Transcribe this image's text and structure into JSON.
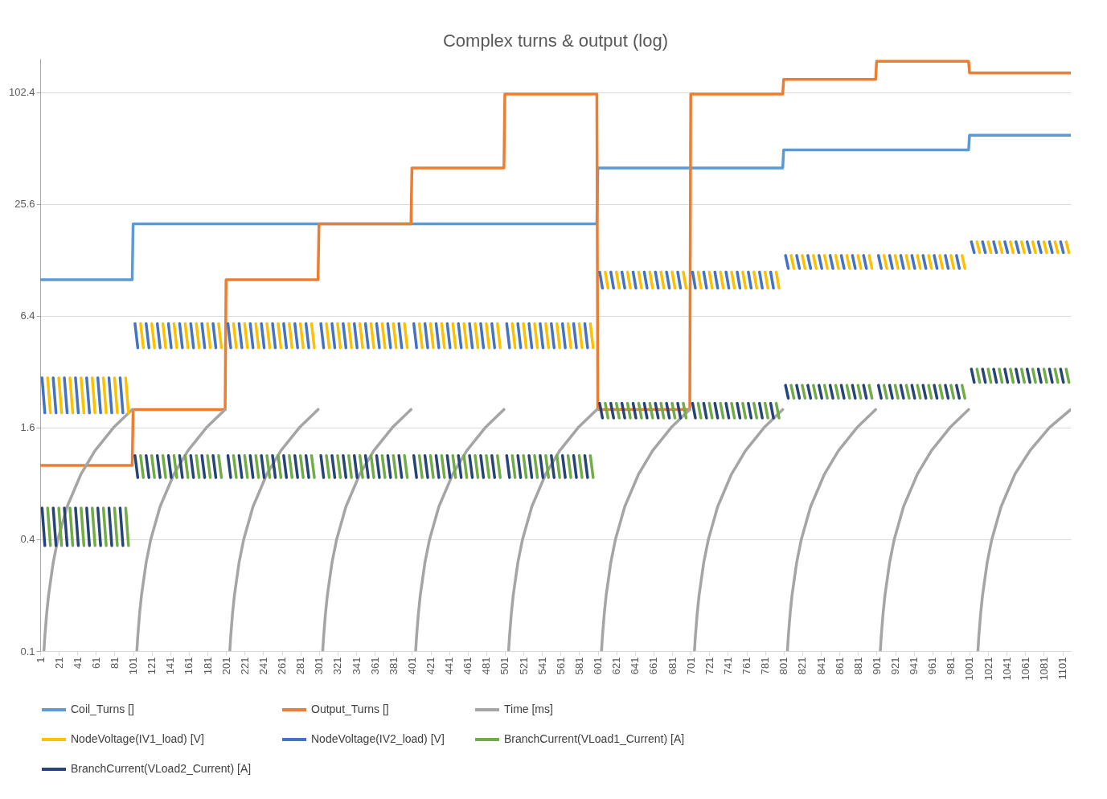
{
  "chart_data": {
    "type": "line",
    "title": "Complex turns & output (log)",
    "log": true,
    "grid": "y",
    "legend": "bottom",
    "marker": "none",
    "line_style": "solid",
    "xlim": [
      1,
      1110
    ],
    "xticks": [
      1,
      21,
      41,
      61,
      81,
      101,
      121,
      141,
      161,
      181,
      201,
      221,
      241,
      261,
      281,
      301,
      321,
      341,
      361,
      381,
      401,
      421,
      441,
      461,
      481,
      501,
      521,
      541,
      561,
      581,
      601,
      621,
      641,
      661,
      681,
      701,
      721,
      741,
      761,
      781,
      801,
      821,
      841,
      861,
      881,
      901,
      921,
      941,
      961,
      981,
      1001,
      1021,
      1041,
      1061,
      1081,
      1101
    ],
    "ylim": [
      0.1,
      155
    ],
    "yticks": [
      0.1,
      0.4,
      1.6,
      6.4,
      25.6,
      102.4
    ],
    "series": [
      {
        "name": "Coil_Turns []",
        "color": "#5b9bd5",
        "x": [
          1,
          100,
          101,
          600,
          601,
          800,
          801,
          1000,
          1001,
          1110
        ],
        "values": [
          10,
          10,
          20,
          20,
          40,
          40,
          50,
          50,
          60,
          60
        ]
      },
      {
        "name": "Output_Turns []",
        "color": "#ed7d31",
        "x": [
          1,
          100,
          101,
          200,
          201,
          300,
          301,
          400,
          401,
          500,
          501,
          600,
          601,
          700,
          701,
          800,
          801,
          900,
          901,
          1000,
          1001,
          1110
        ],
        "values": [
          1,
          1,
          2,
          2,
          10,
          10,
          20,
          20,
          40,
          40,
          100,
          100,
          2,
          2,
          100,
          100,
          120,
          120,
          150,
          150,
          130,
          130
        ]
      },
      {
        "name": "Time [ms]",
        "color": "#a5a5a5",
        "x": [
          5,
          6,
          8,
          10,
          15,
          20,
          30,
          45,
          60,
          80,
          100,
          101,
          105,
          106,
          108,
          110,
          115,
          120,
          130,
          145,
          160,
          180,
          200,
          201,
          205,
          206,
          208,
          210,
          215,
          220,
          230,
          245,
          260,
          280,
          300,
          301,
          305,
          306,
          308,
          310,
          315,
          320,
          330,
          345,
          360,
          380,
          400,
          401,
          405,
          406,
          408,
          410,
          415,
          420,
          430,
          445,
          460,
          480,
          500,
          501,
          505,
          506,
          508,
          510,
          515,
          520,
          530,
          545,
          560,
          580,
          600,
          601,
          605,
          606,
          608,
          610,
          615,
          620,
          630,
          645,
          660,
          680,
          700,
          701,
          705,
          706,
          708,
          710,
          715,
          720,
          730,
          745,
          760,
          780,
          800,
          801,
          805,
          806,
          808,
          810,
          815,
          820,
          830,
          845,
          860,
          880,
          900,
          901,
          905,
          906,
          908,
          910,
          915,
          920,
          930,
          945,
          960,
          980,
          1000,
          1001,
          1010,
          1011,
          1013,
          1015,
          1020,
          1025,
          1035,
          1050,
          1066,
          1087,
          1110
        ],
        "values": [
          0.1,
          0.12,
          0.16,
          0.2,
          0.3,
          0.4,
          0.6,
          0.9,
          1.2,
          1.6,
          2.0,
          null,
          0.1,
          0.12,
          0.16,
          0.2,
          0.3,
          0.4,
          0.6,
          0.9,
          1.2,
          1.6,
          2.0,
          null,
          0.1,
          0.12,
          0.16,
          0.2,
          0.3,
          0.4,
          0.6,
          0.9,
          1.2,
          1.6,
          2.0,
          null,
          0.1,
          0.12,
          0.16,
          0.2,
          0.3,
          0.4,
          0.6,
          0.9,
          1.2,
          1.6,
          2.0,
          null,
          0.1,
          0.12,
          0.16,
          0.2,
          0.3,
          0.4,
          0.6,
          0.9,
          1.2,
          1.6,
          2.0,
          null,
          0.1,
          0.12,
          0.16,
          0.2,
          0.3,
          0.4,
          0.6,
          0.9,
          1.2,
          1.6,
          2.0,
          null,
          0.1,
          0.12,
          0.16,
          0.2,
          0.3,
          0.4,
          0.6,
          0.9,
          1.2,
          1.6,
          2.0,
          null,
          0.1,
          0.12,
          0.16,
          0.2,
          0.3,
          0.4,
          0.6,
          0.9,
          1.2,
          1.6,
          2.0,
          null,
          0.1,
          0.12,
          0.16,
          0.2,
          0.3,
          0.4,
          0.6,
          0.9,
          1.2,
          1.6,
          2.0,
          null,
          0.1,
          0.12,
          0.16,
          0.2,
          0.3,
          0.4,
          0.6,
          0.9,
          1.2,
          1.6,
          2.0,
          null,
          0.1,
          0.12,
          0.16,
          0.2,
          0.3,
          0.4,
          0.6,
          0.9,
          1.2,
          1.6,
          2.0
        ]
      },
      {
        "name": "NodeVoltage(IV1_load) [V]",
        "color": "#ffc000",
        "x": [
          9,
          12,
          13,
          21,
          24,
          25,
          33,
          36,
          37,
          45,
          48,
          49,
          57,
          60,
          61,
          69,
          72,
          73,
          81,
          84,
          85,
          93,
          96,
          97,
          109,
          112,
          113,
          121,
          124,
          125,
          133,
          136,
          137,
          145,
          148,
          149,
          157,
          160,
          161,
          169,
          172,
          173,
          181,
          184,
          185,
          193,
          196,
          197,
          209,
          212,
          213,
          221,
          224,
          225,
          233,
          236,
          237,
          245,
          248,
          249,
          257,
          260,
          261,
          269,
          272,
          273,
          281,
          284,
          285,
          293,
          296,
          297,
          309,
          312,
          313,
          321,
          324,
          325,
          333,
          336,
          337,
          345,
          348,
          349,
          357,
          360,
          361,
          369,
          372,
          373,
          381,
          384,
          385,
          393,
          396,
          397,
          409,
          412,
          413,
          421,
          424,
          425,
          433,
          436,
          437,
          445,
          448,
          449,
          457,
          460,
          461,
          469,
          472,
          473,
          481,
          484,
          485,
          493,
          496,
          497,
          509,
          512,
          513,
          521,
          524,
          525,
          533,
          536,
          537,
          545,
          548,
          549,
          557,
          560,
          561,
          569,
          572,
          573,
          581,
          584,
          585,
          593,
          596,
          597,
          609,
          612,
          613,
          621,
          624,
          625,
          633,
          636,
          637,
          645,
          648,
          649,
          657,
          660,
          661,
          669,
          672,
          673,
          681,
          684,
          685,
          693,
          696,
          697,
          709,
          712,
          713,
          721,
          724,
          725,
          733,
          736,
          737,
          745,
          748,
          749,
          757,
          760,
          761,
          769,
          772,
          773,
          781,
          784,
          785,
          793,
          796,
          797,
          809,
          812,
          813,
          821,
          824,
          825,
          833,
          836,
          837,
          845,
          848,
          849,
          857,
          860,
          861,
          869,
          872,
          873,
          881,
          884,
          885,
          893,
          896,
          897,
          909,
          912,
          913,
          921,
          924,
          925,
          933,
          936,
          937,
          945,
          948,
          949,
          957,
          960,
          961,
          969,
          972,
          973,
          981,
          984,
          985,
          993,
          996,
          997,
          1009,
          1012,
          1013,
          1021,
          1024,
          1025,
          1033,
          1036,
          1037,
          1045,
          1048,
          1049,
          1057,
          1060,
          1061,
          1069,
          1072,
          1073,
          1081,
          1084,
          1085,
          1093,
          1096,
          1097,
          1105,
          1108
        ],
        "values": [
          2.96,
          1.92,
          null,
          2.96,
          1.92,
          null,
          2.96,
          1.92,
          null,
          2.96,
          1.92,
          null,
          2.96,
          1.92,
          null,
          2.96,
          1.92,
          null,
          2.96,
          1.92,
          null,
          2.96,
          1.92,
          null,
          5.8,
          4.3,
          null,
          5.8,
          4.3,
          null,
          5.8,
          4.3,
          null,
          5.8,
          4.3,
          null,
          5.8,
          4.3,
          null,
          5.8,
          4.3,
          null,
          5.8,
          4.3,
          null,
          5.8,
          4.3,
          null,
          5.8,
          4.3,
          null,
          5.8,
          4.3,
          null,
          5.8,
          4.3,
          null,
          5.8,
          4.3,
          null,
          5.8,
          4.3,
          null,
          5.8,
          4.3,
          null,
          5.8,
          4.3,
          null,
          5.8,
          4.3,
          null,
          5.8,
          4.3,
          null,
          5.8,
          4.3,
          null,
          5.8,
          4.3,
          null,
          5.8,
          4.3,
          null,
          5.8,
          4.3,
          null,
          5.8,
          4.3,
          null,
          5.8,
          4.3,
          null,
          5.8,
          4.3,
          null,
          5.8,
          4.3,
          null,
          5.8,
          4.3,
          null,
          5.8,
          4.3,
          null,
          5.8,
          4.3,
          null,
          5.8,
          4.3,
          null,
          5.8,
          4.3,
          null,
          5.8,
          4.3,
          null,
          5.8,
          4.3,
          null,
          5.8,
          4.3,
          null,
          5.8,
          4.3,
          null,
          5.8,
          4.3,
          null,
          5.8,
          4.3,
          null,
          5.8,
          4.3,
          null,
          5.8,
          4.3,
          null,
          5.8,
          4.3,
          null,
          5.8,
          4.3,
          null,
          11,
          9,
          null,
          11,
          9,
          null,
          11,
          9,
          null,
          11,
          9,
          null,
          11,
          9,
          null,
          11,
          9,
          null,
          11,
          9,
          null,
          11,
          9,
          null,
          11,
          9,
          null,
          11,
          9,
          null,
          11,
          9,
          null,
          11,
          9,
          null,
          11,
          9,
          null,
          11,
          9,
          null,
          11,
          9,
          null,
          11,
          9,
          null,
          13.5,
          11.5,
          null,
          13.5,
          11.5,
          null,
          13.5,
          11.5,
          null,
          13.5,
          11.5,
          null,
          13.5,
          11.5,
          null,
          13.5,
          11.5,
          null,
          13.5,
          11.5,
          null,
          13.5,
          11.5,
          null,
          13.5,
          11.5,
          null,
          13.5,
          11.5,
          null,
          13.5,
          11.5,
          null,
          13.5,
          11.5,
          null,
          13.5,
          11.5,
          null,
          13.5,
          11.5,
          null,
          13.5,
          11.5,
          null,
          13.5,
          11.5,
          null,
          16,
          14,
          null,
          16,
          14,
          null,
          16,
          14,
          null,
          16,
          14,
          null,
          16,
          14,
          null,
          16,
          14,
          null,
          16,
          14,
          null,
          16,
          14,
          null,
          16,
          14
        ]
      },
      {
        "name": "NodeVoltage(IV2_load) [V]",
        "color": "#4472c4",
        "x": [
          3,
          6,
          7,
          15,
          18,
          19,
          27,
          30,
          31,
          39,
          42,
          43,
          51,
          54,
          55,
          63,
          66,
          67,
          75,
          78,
          79,
          87,
          90,
          91,
          103,
          106,
          107,
          115,
          118,
          119,
          127,
          130,
          131,
          139,
          142,
          143,
          151,
          154,
          155,
          163,
          166,
          167,
          175,
          178,
          179,
          187,
          190,
          191,
          203,
          206,
          207,
          215,
          218,
          219,
          227,
          230,
          231,
          239,
          242,
          243,
          251,
          254,
          255,
          263,
          266,
          267,
          275,
          278,
          279,
          287,
          290,
          291,
          303,
          306,
          307,
          315,
          318,
          319,
          327,
          330,
          331,
          339,
          342,
          343,
          351,
          354,
          355,
          363,
          366,
          367,
          375,
          378,
          379,
          387,
          390,
          391,
          403,
          406,
          407,
          415,
          418,
          419,
          427,
          430,
          431,
          439,
          442,
          443,
          451,
          454,
          455,
          463,
          466,
          467,
          475,
          478,
          479,
          487,
          490,
          491,
          503,
          506,
          507,
          515,
          518,
          519,
          527,
          530,
          531,
          539,
          542,
          543,
          551,
          554,
          555,
          563,
          566,
          567,
          575,
          578,
          579,
          587,
          590,
          591,
          603,
          606,
          607,
          615,
          618,
          619,
          627,
          630,
          631,
          639,
          642,
          643,
          651,
          654,
          655,
          663,
          666,
          667,
          675,
          678,
          679,
          687,
          690,
          691,
          703,
          706,
          707,
          715,
          718,
          719,
          727,
          730,
          731,
          739,
          742,
          743,
          751,
          754,
          755,
          763,
          766,
          767,
          775,
          778,
          779,
          787,
          790,
          791,
          803,
          806,
          807,
          815,
          818,
          819,
          827,
          830,
          831,
          839,
          842,
          843,
          851,
          854,
          855,
          863,
          866,
          867,
          875,
          878,
          879,
          887,
          890,
          891,
          903,
          906,
          907,
          915,
          918,
          919,
          927,
          930,
          931,
          939,
          942,
          943,
          951,
          954,
          955,
          963,
          966,
          967,
          975,
          978,
          979,
          987,
          990,
          991,
          1003,
          1006,
          1007,
          1015,
          1018,
          1019,
          1027,
          1030,
          1031,
          1039,
          1042,
          1043,
          1051,
          1054,
          1055,
          1063,
          1066,
          1067,
          1075,
          1078,
          1079,
          1087,
          1090,
          1091,
          1099,
          1102
        ],
        "values": [
          2.96,
          1.92,
          null,
          2.96,
          1.92,
          null,
          2.96,
          1.92,
          null,
          2.96,
          1.92,
          null,
          2.96,
          1.92,
          null,
          2.96,
          1.92,
          null,
          2.96,
          1.92,
          null,
          2.96,
          1.92,
          null,
          5.8,
          4.3,
          null,
          5.8,
          4.3,
          null,
          5.8,
          4.3,
          null,
          5.8,
          4.3,
          null,
          5.8,
          4.3,
          null,
          5.8,
          4.3,
          null,
          5.8,
          4.3,
          null,
          5.8,
          4.3,
          null,
          5.8,
          4.3,
          null,
          5.8,
          4.3,
          null,
          5.8,
          4.3,
          null,
          5.8,
          4.3,
          null,
          5.8,
          4.3,
          null,
          5.8,
          4.3,
          null,
          5.8,
          4.3,
          null,
          5.8,
          4.3,
          null,
          5.8,
          4.3,
          null,
          5.8,
          4.3,
          null,
          5.8,
          4.3,
          null,
          5.8,
          4.3,
          null,
          5.8,
          4.3,
          null,
          5.8,
          4.3,
          null,
          5.8,
          4.3,
          null,
          5.8,
          4.3,
          null,
          5.8,
          4.3,
          null,
          5.8,
          4.3,
          null,
          5.8,
          4.3,
          null,
          5.8,
          4.3,
          null,
          5.8,
          4.3,
          null,
          5.8,
          4.3,
          null,
          5.8,
          4.3,
          null,
          5.8,
          4.3,
          null,
          5.8,
          4.3,
          null,
          5.8,
          4.3,
          null,
          5.8,
          4.3,
          null,
          5.8,
          4.3,
          null,
          5.8,
          4.3,
          null,
          5.8,
          4.3,
          null,
          5.8,
          4.3,
          null,
          5.8,
          4.3,
          null,
          11,
          9,
          null,
          11,
          9,
          null,
          11,
          9,
          null,
          11,
          9,
          null,
          11,
          9,
          null,
          11,
          9,
          null,
          11,
          9,
          null,
          11,
          9,
          null,
          11,
          9,
          null,
          11,
          9,
          null,
          11,
          9,
          null,
          11,
          9,
          null,
          11,
          9,
          null,
          11,
          9,
          null,
          11,
          9,
          null,
          11,
          9,
          null,
          13.5,
          11.5,
          null,
          13.5,
          11.5,
          null,
          13.5,
          11.5,
          null,
          13.5,
          11.5,
          null,
          13.5,
          11.5,
          null,
          13.5,
          11.5,
          null,
          13.5,
          11.5,
          null,
          13.5,
          11.5,
          null,
          13.5,
          11.5,
          null,
          13.5,
          11.5,
          null,
          13.5,
          11.5,
          null,
          13.5,
          11.5,
          null,
          13.5,
          11.5,
          null,
          13.5,
          11.5,
          null,
          13.5,
          11.5,
          null,
          13.5,
          11.5,
          null,
          16,
          14,
          null,
          16,
          14,
          null,
          16,
          14,
          null,
          16,
          14,
          null,
          16,
          14,
          null,
          16,
          14,
          null,
          16,
          14,
          null,
          16,
          14,
          null,
          16,
          14
        ]
      },
      {
        "name": "BranchCurrent(VLoad1_Current) [A]",
        "color": "#70ad47",
        "x": [
          9,
          12,
          13,
          21,
          24,
          25,
          33,
          36,
          37,
          45,
          48,
          49,
          57,
          60,
          61,
          69,
          72,
          73,
          81,
          84,
          85,
          93,
          96,
          97,
          109,
          112,
          113,
          121,
          124,
          125,
          133,
          136,
          137,
          145,
          148,
          149,
          157,
          160,
          161,
          169,
          172,
          173,
          181,
          184,
          185,
          193,
          196,
          197,
          209,
          212,
          213,
          221,
          224,
          225,
          233,
          236,
          237,
          245,
          248,
          249,
          257,
          260,
          261,
          269,
          272,
          273,
          281,
          284,
          285,
          293,
          296,
          297,
          309,
          312,
          313,
          321,
          324,
          325,
          333,
          336,
          337,
          345,
          348,
          349,
          357,
          360,
          361,
          369,
          372,
          373,
          381,
          384,
          385,
          393,
          396,
          397,
          409,
          412,
          413,
          421,
          424,
          425,
          433,
          436,
          437,
          445,
          448,
          449,
          457,
          460,
          461,
          469,
          472,
          473,
          481,
          484,
          485,
          493,
          496,
          497,
          509,
          512,
          513,
          521,
          524,
          525,
          533,
          536,
          537,
          545,
          548,
          549,
          557,
          560,
          561,
          569,
          572,
          573,
          581,
          584,
          585,
          593,
          596,
          597,
          609,
          612,
          613,
          621,
          624,
          625,
          633,
          636,
          637,
          645,
          648,
          649,
          657,
          660,
          661,
          669,
          672,
          673,
          681,
          684,
          685,
          693,
          696,
          697,
          709,
          712,
          713,
          721,
          724,
          725,
          733,
          736,
          737,
          745,
          748,
          749,
          757,
          760,
          761,
          769,
          772,
          773,
          781,
          784,
          785,
          793,
          796,
          797,
          809,
          812,
          813,
          821,
          824,
          825,
          833,
          836,
          837,
          845,
          848,
          849,
          857,
          860,
          861,
          869,
          872,
          873,
          881,
          884,
          885,
          893,
          896,
          897,
          909,
          912,
          913,
          921,
          924,
          925,
          933,
          936,
          937,
          945,
          948,
          949,
          957,
          960,
          961,
          969,
          972,
          973,
          981,
          984,
          985,
          993,
          996,
          997,
          1009,
          1012,
          1013,
          1021,
          1024,
          1025,
          1033,
          1036,
          1037,
          1045,
          1048,
          1049,
          1057,
          1060,
          1061,
          1069,
          1072,
          1073,
          1081,
          1084,
          1085,
          1093,
          1096,
          1097,
          1105,
          1108
        ],
        "values": [
          0.59,
          0.37,
          null,
          0.59,
          0.37,
          null,
          0.59,
          0.37,
          null,
          0.59,
          0.37,
          null,
          0.59,
          0.37,
          null,
          0.59,
          0.37,
          null,
          0.59,
          0.37,
          null,
          0.59,
          0.37,
          null,
          1.13,
          0.86,
          null,
          1.13,
          0.86,
          null,
          1.13,
          0.86,
          null,
          1.13,
          0.86,
          null,
          1.13,
          0.86,
          null,
          1.13,
          0.86,
          null,
          1.13,
          0.86,
          null,
          1.13,
          0.86,
          null,
          1.13,
          0.86,
          null,
          1.13,
          0.86,
          null,
          1.13,
          0.86,
          null,
          1.13,
          0.86,
          null,
          1.13,
          0.86,
          null,
          1.13,
          0.86,
          null,
          1.13,
          0.86,
          null,
          1.13,
          0.86,
          null,
          1.13,
          0.86,
          null,
          1.13,
          0.86,
          null,
          1.13,
          0.86,
          null,
          1.13,
          0.86,
          null,
          1.13,
          0.86,
          null,
          1.13,
          0.86,
          null,
          1.13,
          0.86,
          null,
          1.13,
          0.86,
          null,
          1.13,
          0.86,
          null,
          1.13,
          0.86,
          null,
          1.13,
          0.86,
          null,
          1.13,
          0.86,
          null,
          1.13,
          0.86,
          null,
          1.13,
          0.86,
          null,
          1.13,
          0.86,
          null,
          1.13,
          0.86,
          null,
          1.13,
          0.86,
          null,
          1.13,
          0.86,
          null,
          1.13,
          0.86,
          null,
          1.13,
          0.86,
          null,
          1.13,
          0.86,
          null,
          1.13,
          0.86,
          null,
          1.13,
          0.86,
          null,
          1.13,
          0.86,
          null,
          2.16,
          1.8,
          null,
          2.16,
          1.8,
          null,
          2.16,
          1.8,
          null,
          2.16,
          1.8,
          null,
          2.16,
          1.8,
          null,
          2.16,
          1.8,
          null,
          2.16,
          1.8,
          null,
          2.16,
          1.8,
          null,
          2.16,
          1.8,
          null,
          2.16,
          1.8,
          null,
          2.16,
          1.8,
          null,
          2.16,
          1.8,
          null,
          2.16,
          1.8,
          null,
          2.16,
          1.8,
          null,
          2.16,
          1.8,
          null,
          2.16,
          1.8,
          null,
          2.7,
          2.3,
          null,
          2.7,
          2.3,
          null,
          2.7,
          2.3,
          null,
          2.7,
          2.3,
          null,
          2.7,
          2.3,
          null,
          2.7,
          2.3,
          null,
          2.7,
          2.3,
          null,
          2.7,
          2.3,
          null,
          2.7,
          2.3,
          null,
          2.7,
          2.3,
          null,
          2.7,
          2.3,
          null,
          2.7,
          2.3,
          null,
          2.7,
          2.3,
          null,
          2.7,
          2.3,
          null,
          2.7,
          2.3,
          null,
          2.7,
          2.3,
          null,
          3.3,
          2.8,
          null,
          3.3,
          2.8,
          null,
          3.3,
          2.8,
          null,
          3.3,
          2.8,
          null,
          3.3,
          2.8,
          null,
          3.3,
          2.8,
          null,
          3.3,
          2.8,
          null,
          3.3,
          2.8,
          null,
          3.3,
          2.8
        ]
      },
      {
        "name": "BranchCurrent(VLoad2_Current) [A]",
        "color": "#264478",
        "x": [
          3,
          6,
          7,
          15,
          18,
          19,
          27,
          30,
          31,
          39,
          42,
          43,
          51,
          54,
          55,
          63,
          66,
          67,
          75,
          78,
          79,
          87,
          90,
          91,
          103,
          106,
          107,
          115,
          118,
          119,
          127,
          130,
          131,
          139,
          142,
          143,
          151,
          154,
          155,
          163,
          166,
          167,
          175,
          178,
          179,
          187,
          190,
          191,
          203,
          206,
          207,
          215,
          218,
          219,
          227,
          230,
          231,
          239,
          242,
          243,
          251,
          254,
          255,
          263,
          266,
          267,
          275,
          278,
          279,
          287,
          290,
          291,
          303,
          306,
          307,
          315,
          318,
          319,
          327,
          330,
          331,
          339,
          342,
          343,
          351,
          354,
          355,
          363,
          366,
          367,
          375,
          378,
          379,
          387,
          390,
          391,
          403,
          406,
          407,
          415,
          418,
          419,
          427,
          430,
          431,
          439,
          442,
          443,
          451,
          454,
          455,
          463,
          466,
          467,
          475,
          478,
          479,
          487,
          490,
          491,
          503,
          506,
          507,
          515,
          518,
          519,
          527,
          530,
          531,
          539,
          542,
          543,
          551,
          554,
          555,
          563,
          566,
          567,
          575,
          578,
          579,
          587,
          590,
          591,
          603,
          606,
          607,
          615,
          618,
          619,
          627,
          630,
          631,
          639,
          642,
          643,
          651,
          654,
          655,
          663,
          666,
          667,
          675,
          678,
          679,
          687,
          690,
          691,
          703,
          706,
          707,
          715,
          718,
          719,
          727,
          730,
          731,
          739,
          742,
          743,
          751,
          754,
          755,
          763,
          766,
          767,
          775,
          778,
          779,
          787,
          790,
          791,
          803,
          806,
          807,
          815,
          818,
          819,
          827,
          830,
          831,
          839,
          842,
          843,
          851,
          854,
          855,
          863,
          866,
          867,
          875,
          878,
          879,
          887,
          890,
          891,
          903,
          906,
          907,
          915,
          918,
          919,
          927,
          930,
          931,
          939,
          942,
          943,
          951,
          954,
          955,
          963,
          966,
          967,
          975,
          978,
          979,
          987,
          990,
          991,
          1003,
          1006,
          1007,
          1015,
          1018,
          1019,
          1027,
          1030,
          1031,
          1039,
          1042,
          1043,
          1051,
          1054,
          1055,
          1063,
          1066,
          1067,
          1075,
          1078,
          1079,
          1087,
          1090,
          1091,
          1099,
          1102
        ],
        "values": [
          0.59,
          0.37,
          null,
          0.59,
          0.37,
          null,
          0.59,
          0.37,
          null,
          0.59,
          0.37,
          null,
          0.59,
          0.37,
          null,
          0.59,
          0.37,
          null,
          0.59,
          0.37,
          null,
          0.59,
          0.37,
          null,
          1.13,
          0.86,
          null,
          1.13,
          0.86,
          null,
          1.13,
          0.86,
          null,
          1.13,
          0.86,
          null,
          1.13,
          0.86,
          null,
          1.13,
          0.86,
          null,
          1.13,
          0.86,
          null,
          1.13,
          0.86,
          null,
          1.13,
          0.86,
          null,
          1.13,
          0.86,
          null,
          1.13,
          0.86,
          null,
          1.13,
          0.86,
          null,
          1.13,
          0.86,
          null,
          1.13,
          0.86,
          null,
          1.13,
          0.86,
          null,
          1.13,
          0.86,
          null,
          1.13,
          0.86,
          null,
          1.13,
          0.86,
          null,
          1.13,
          0.86,
          null,
          1.13,
          0.86,
          null,
          1.13,
          0.86,
          null,
          1.13,
          0.86,
          null,
          1.13,
          0.86,
          null,
          1.13,
          0.86,
          null,
          1.13,
          0.86,
          null,
          1.13,
          0.86,
          null,
          1.13,
          0.86,
          null,
          1.13,
          0.86,
          null,
          1.13,
          0.86,
          null,
          1.13,
          0.86,
          null,
          1.13,
          0.86,
          null,
          1.13,
          0.86,
          null,
          1.13,
          0.86,
          null,
          1.13,
          0.86,
          null,
          1.13,
          0.86,
          null,
          1.13,
          0.86,
          null,
          1.13,
          0.86,
          null,
          1.13,
          0.86,
          null,
          1.13,
          0.86,
          null,
          1.13,
          0.86,
          null,
          2.16,
          1.8,
          null,
          2.16,
          1.8,
          null,
          2.16,
          1.8,
          null,
          2.16,
          1.8,
          null,
          2.16,
          1.8,
          null,
          2.16,
          1.8,
          null,
          2.16,
          1.8,
          null,
          2.16,
          1.8,
          null,
          2.16,
          1.8,
          null,
          2.16,
          1.8,
          null,
          2.16,
          1.8,
          null,
          2.16,
          1.8,
          null,
          2.16,
          1.8,
          null,
          2.16,
          1.8,
          null,
          2.16,
          1.8,
          null,
          2.16,
          1.8,
          null,
          2.7,
          2.3,
          null,
          2.7,
          2.3,
          null,
          2.7,
          2.3,
          null,
          2.7,
          2.3,
          null,
          2.7,
          2.3,
          null,
          2.7,
          2.3,
          null,
          2.7,
          2.3,
          null,
          2.7,
          2.3,
          null,
          2.7,
          2.3,
          null,
          2.7,
          2.3,
          null,
          2.7,
          2.3,
          null,
          2.7,
          2.3,
          null,
          2.7,
          2.3,
          null,
          2.7,
          2.3,
          null,
          2.7,
          2.3,
          null,
          2.7,
          2.3,
          null,
          3.3,
          2.8,
          null,
          3.3,
          2.8,
          null,
          3.3,
          2.8,
          null,
          3.3,
          2.8,
          null,
          3.3,
          2.8,
          null,
          3.3,
          2.8,
          null,
          3.3,
          2.8,
          null,
          3.3,
          2.8,
          null,
          3.3,
          2.8
        ]
      }
    ]
  }
}
